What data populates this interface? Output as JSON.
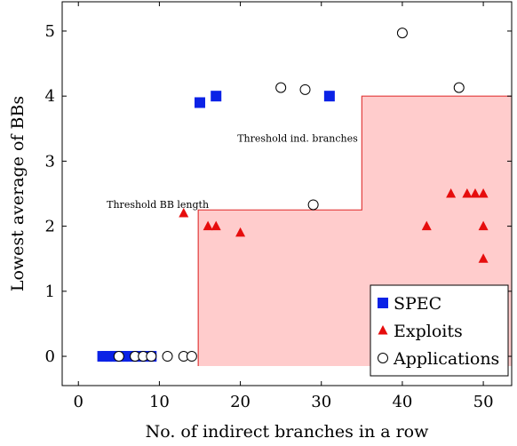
{
  "chart_data": {
    "type": "scatter",
    "xlabel": "No. of indirect branches in a row",
    "ylabel": "Lowest average of BBs",
    "xlim": [
      -2,
      53.5
    ],
    "ylim": [
      -0.45,
      5.45
    ],
    "xticks": [
      0,
      10,
      20,
      30,
      40,
      50
    ],
    "yticks": [
      0,
      1,
      2,
      3,
      4,
      5
    ],
    "grid": false,
    "legend_position": "bottom-right",
    "colors": {
      "spec": "#0b22e6",
      "exploits": "#e60d0d",
      "region_fill": "#ffcccc",
      "region_edge": "#e23b3b"
    },
    "series": [
      {
        "name": "SPEC",
        "marker": "square",
        "points": [
          [
            3,
            0
          ],
          [
            3.5,
            0
          ],
          [
            4,
            0
          ],
          [
            4.5,
            0
          ],
          [
            5,
            0
          ],
          [
            5.5,
            0
          ],
          [
            6,
            0
          ],
          [
            6.5,
            0
          ],
          [
            7,
            0
          ],
          [
            7.5,
            0
          ],
          [
            8,
            0
          ],
          [
            8.5,
            0
          ],
          [
            9,
            0
          ],
          [
            15,
            3.9
          ],
          [
            17,
            4.0
          ],
          [
            31,
            4.0
          ]
        ]
      },
      {
        "name": "Exploits",
        "marker": "triangle",
        "points": [
          [
            13,
            2.2
          ],
          [
            16,
            2.0
          ],
          [
            17,
            2.0
          ],
          [
            20,
            1.9
          ],
          [
            43,
            2.0
          ],
          [
            46,
            2.5
          ],
          [
            48,
            2.5
          ],
          [
            49,
            2.5
          ],
          [
            50,
            2.5
          ],
          [
            50,
            2.0
          ],
          [
            50,
            1.5
          ]
        ]
      },
      {
        "name": "Applications",
        "marker": "circle",
        "points": [
          [
            5,
            0
          ],
          [
            7,
            0
          ],
          [
            8,
            0
          ],
          [
            9,
            0
          ],
          [
            11,
            0
          ],
          [
            13,
            0
          ],
          [
            14,
            0
          ],
          [
            25,
            4.13
          ],
          [
            28,
            4.1
          ],
          [
            29,
            2.33
          ],
          [
            40,
            4.97
          ],
          [
            47,
            4.13
          ]
        ]
      }
    ],
    "region": {
      "x_start": 14.8,
      "steps": [
        {
          "x_to": 35,
          "y": 2.25
        },
        {
          "x_to": 53.5,
          "y": 4.0
        }
      ],
      "y_bottom": -0.15
    },
    "annotations": [
      {
        "text": "Threshold ind. branches",
        "x": 34.5,
        "y": 3.3
      },
      {
        "text": "Threshold BB length",
        "x": 3.5,
        "y": 2.28
      }
    ]
  }
}
